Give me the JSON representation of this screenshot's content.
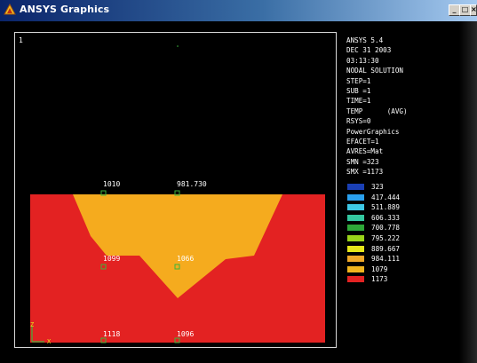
{
  "window": {
    "title": "ANSYS Graphics",
    "buttons": {
      "minimize": "_",
      "maximize": "□",
      "close": "×"
    }
  },
  "viewport": {
    "window_number": "1",
    "triad": {
      "z": "Z",
      "x": "X"
    },
    "node_labels": [
      "1010",
      "981.730",
      "1099",
      "1066",
      "1118",
      "1096"
    ]
  },
  "info": {
    "lines": [
      "ANSYS 5.4",
      "DEC 31 2003",
      "03:13:30",
      "NODAL SOLUTION",
      "STEP=1",
      "SUB =1",
      "TIME=1",
      "TEMP      (AVG)",
      "RSYS=0",
      "PowerGraphics",
      "EFACET=1",
      "AVRES=Mat",
      "SMN =323",
      "SMX =1173"
    ]
  },
  "legend": [
    {
      "label": "323",
      "color": "#1a3fb4"
    },
    {
      "label": "417.444",
      "color": "#2aa0ee"
    },
    {
      "label": "511.889",
      "color": "#3ec8e6"
    },
    {
      "label": "606.333",
      "color": "#34c8a0"
    },
    {
      "label": "700.778",
      "color": "#2ea838"
    },
    {
      "label": "795.222",
      "color": "#9ad41a"
    },
    {
      "label": "889.667",
      "color": "#e6e61a"
    },
    {
      "label": "984.111",
      "color": "#f0a828"
    },
    {
      "label": "1079",
      "color": "#f0b41e"
    },
    {
      "label": "1173",
      "color": "#e32222"
    }
  ],
  "contour_colors": {
    "hot": "#e32222",
    "warm": "#f5ab1e",
    "node_marker": "#3cb43c",
    "frame": "#d8d8d8"
  }
}
